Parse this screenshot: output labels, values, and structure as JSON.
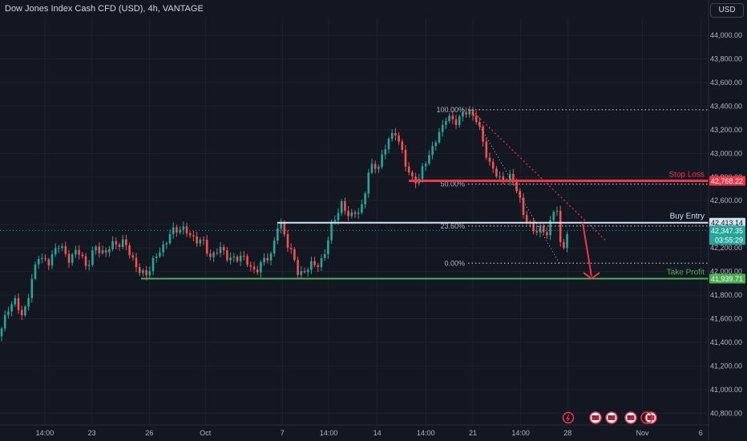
{
  "header": {
    "title": "Dow Jones Index Cash CFD (USD), 4h, VANTAGE",
    "currency_button": "USD"
  },
  "colors": {
    "bg": "#131722",
    "up": "#26a69a",
    "down": "#ef5350",
    "grid": "#1e222d",
    "axis_text": "#b2b5be",
    "stop": "#f23645",
    "entry": "#d1e3f2",
    "tp": "#4caf50",
    "fib": "#b2b5be"
  },
  "chart_data": {
    "type": "candlestick",
    "title": "Dow Jones Index Cash CFD (USD), 4h, VANTAGE",
    "ylim": [
      40700,
      44150
    ],
    "y_ticks": [
      40800,
      41000,
      41200,
      41400,
      41600,
      41800,
      42000,
      42200,
      42400,
      42600,
      42800,
      43000,
      43200,
      43400,
      43600,
      43800,
      44000
    ],
    "y_tick_labels": [
      "40,800.00",
      "41,000.00",
      "41,200.00",
      "41,400.00",
      "41,600.00",
      "41,800.00",
      "42,000.00",
      "42,200.00",
      "42,400.00",
      "42,600.00",
      "42,800.00",
      "43,000.00",
      "43,200.00",
      "43,400.00",
      "43,600.00",
      "43,800.00",
      "44,000.00"
    ],
    "x_ticks": [
      {
        "label": "14:00",
        "pos": 0.06
      },
      {
        "label": "23",
        "pos": 0.123
      },
      {
        "label": "26",
        "pos": 0.2
      },
      {
        "label": "Oct",
        "pos": 0.275
      },
      {
        "label": "7",
        "pos": 0.378
      },
      {
        "label": "14:00",
        "pos": 0.44
      },
      {
        "label": "14",
        "pos": 0.505
      },
      {
        "label": "14:00",
        "pos": 0.57
      },
      {
        "label": "21",
        "pos": 0.633
      },
      {
        "label": "14:00",
        "pos": 0.697
      },
      {
        "label": "28",
        "pos": 0.76
      },
      {
        "label": "Nov",
        "pos": 0.86
      },
      {
        "label": "6",
        "pos": 0.938
      }
    ],
    "anchors": [
      [
        0,
        41450
      ],
      [
        10,
        41700
      ],
      [
        18,
        41750
      ],
      [
        28,
        41620
      ],
      [
        38,
        41860
      ],
      [
        48,
        42150
      ],
      [
        60,
        42050
      ],
      [
        72,
        42250
      ],
      [
        84,
        42100
      ],
      [
        96,
        42180
      ],
      [
        108,
        42050
      ],
      [
        120,
        42200
      ],
      [
        132,
        42160
      ],
      [
        144,
        42250
      ],
      [
        156,
        42230
      ],
      [
        168,
        42080
      ],
      [
        176,
        41960
      ],
      [
        184,
        42000
      ],
      [
        200,
        42180
      ],
      [
        212,
        42310
      ],
      [
        224,
        42380
      ],
      [
        238,
        42300
      ],
      [
        252,
        42250
      ],
      [
        264,
        42120
      ],
      [
        276,
        42200
      ],
      [
        290,
        42080
      ],
      [
        302,
        42150
      ],
      [
        314,
        42000
      ],
      [
        326,
        42060
      ],
      [
        338,
        42150
      ],
      [
        348,
        42420
      ],
      [
        356,
        42300
      ],
      [
        364,
        42150
      ],
      [
        372,
        41980
      ],
      [
        380,
        42010
      ],
      [
        392,
        42060
      ],
      [
        404,
        42100
      ],
      [
        414,
        42420
      ],
      [
        426,
        42550
      ],
      [
        438,
        42480
      ],
      [
        450,
        42500
      ],
      [
        460,
        42850
      ],
      [
        472,
        42900
      ],
      [
        484,
        43100
      ],
      [
        494,
        43200
      ],
      [
        504,
        42930
      ],
      [
        514,
        42800
      ],
      [
        522,
        42740
      ],
      [
        530,
        42950
      ],
      [
        538,
        43000
      ],
      [
        546,
        43150
      ],
      [
        556,
        43300
      ],
      [
        566,
        43270
      ],
      [
        576,
        43320
      ],
      [
        586,
        43360
      ],
      [
        594,
        43300
      ],
      [
        602,
        43100
      ],
      [
        612,
        42900
      ],
      [
        622,
        42780
      ],
      [
        630,
        42800
      ],
      [
        638,
        42780
      ],
      [
        646,
        42700
      ],
      [
        654,
        42450
      ],
      [
        662,
        42380
      ],
      [
        672,
        42350
      ],
      [
        682,
        42320
      ],
      [
        690,
        42500
      ],
      [
        694,
        42600
      ],
      [
        698,
        42230
      ],
      [
        702,
        42180
      ],
      [
        706,
        42330
      ],
      [
        710,
        42347.35
      ]
    ],
    "last_price": 42347.35,
    "levels": {
      "stop_loss": {
        "label": "Stop Loss",
        "price": 42768.22,
        "price_label": "42,768.22"
      },
      "buy_entry": {
        "label": "Buy Entry",
        "price": 42413.14,
        "price_label": "42,413.14"
      },
      "take_profit": {
        "label": "Take Profit",
        "price": 41939.71,
        "price_label": "41,939.71"
      }
    },
    "last_price_label": "42,347.35",
    "countdown": "03:55:29",
    "fib": [
      {
        "label": "100.00%",
        "price": 43370
      },
      {
        "label": "50.00%",
        "price": 42740
      },
      {
        "label": "23.60%",
        "price": 42385
      },
      {
        "label": "0.00%",
        "price": 42070
      }
    ]
  }
}
